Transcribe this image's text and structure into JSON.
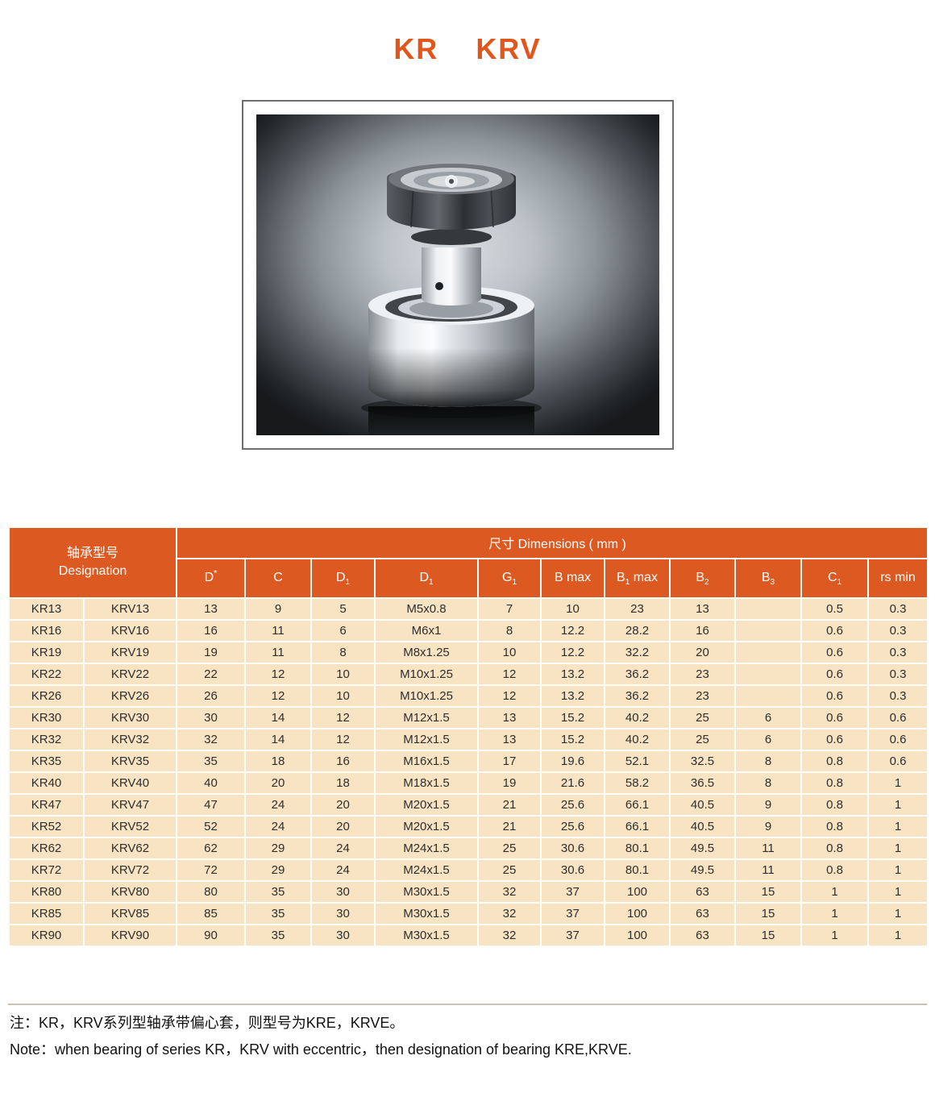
{
  "page": {
    "title_parts": [
      "KR",
      "KRV"
    ]
  },
  "photo": {
    "subject": "cam-follower-stud-bearing-photo"
  },
  "table": {
    "designation_header": {
      "line1": "轴承型号",
      "line2": "Designation"
    },
    "dimensions_header": "尺寸  Dimensions ( mm )",
    "columns": [
      {
        "pre": "D",
        "sup": "*"
      },
      {
        "pre": "C"
      },
      {
        "pre": "D",
        "sub": "1"
      },
      {
        "pre": "D",
        "sub": "1"
      },
      {
        "pre": "G",
        "sub": "1"
      },
      {
        "pre": "B max"
      },
      {
        "pre": "B",
        "sub": "1",
        "post": " max"
      },
      {
        "pre": "B",
        "sub": "2"
      },
      {
        "pre": "B",
        "sub": "3"
      },
      {
        "pre": "C",
        "sub": "1"
      },
      {
        "pre": "rs min"
      }
    ],
    "rows": [
      [
        "KR13",
        "KRV13",
        "13",
        "9",
        "5",
        "M5x0.8",
        "7",
        "10",
        "23",
        "13",
        "",
        "0.5",
        "0.3"
      ],
      [
        "KR16",
        "KRV16",
        "16",
        "11",
        "6",
        "M6x1",
        "8",
        "12.2",
        "28.2",
        "16",
        "",
        "0.6",
        "0.3"
      ],
      [
        "KR19",
        "KRV19",
        "19",
        "11",
        "8",
        "M8x1.25",
        "10",
        "12.2",
        "32.2",
        "20",
        "",
        "0.6",
        "0.3"
      ],
      [
        "KR22",
        "KRV22",
        "22",
        "12",
        "10",
        "M10x1.25",
        "12",
        "13.2",
        "36.2",
        "23",
        "",
        "0.6",
        "0.3"
      ],
      [
        "KR26",
        "KRV26",
        "26",
        "12",
        "10",
        "M10x1.25",
        "12",
        "13.2",
        "36.2",
        "23",
        "",
        "0.6",
        "0.3"
      ],
      [
        "KR30",
        "KRV30",
        "30",
        "14",
        "12",
        "M12x1.5",
        "13",
        "15.2",
        "40.2",
        "25",
        "6",
        "0.6",
        "0.6"
      ],
      [
        "KR32",
        "KRV32",
        "32",
        "14",
        "12",
        "M12x1.5",
        "13",
        "15.2",
        "40.2",
        "25",
        "6",
        "0.6",
        "0.6"
      ],
      [
        "KR35",
        "KRV35",
        "35",
        "18",
        "16",
        "M16x1.5",
        "17",
        "19.6",
        "52.1",
        "32.5",
        "8",
        "0.8",
        "0.6"
      ],
      [
        "KR40",
        "KRV40",
        "40",
        "20",
        "18",
        "M18x1.5",
        "19",
        "21.6",
        "58.2",
        "36.5",
        "8",
        "0.8",
        "1"
      ],
      [
        "KR47",
        "KRV47",
        "47",
        "24",
        "20",
        "M20x1.5",
        "21",
        "25.6",
        "66.1",
        "40.5",
        "9",
        "0.8",
        "1"
      ],
      [
        "KR52",
        "KRV52",
        "52",
        "24",
        "20",
        "M20x1.5",
        "21",
        "25.6",
        "66.1",
        "40.5",
        "9",
        "0.8",
        "1"
      ],
      [
        "KR62",
        "KRV62",
        "62",
        "29",
        "24",
        "M24x1.5",
        "25",
        "30.6",
        "80.1",
        "49.5",
        "11",
        "0.8",
        "1"
      ],
      [
        "KR72",
        "KRV72",
        "72",
        "29",
        "24",
        "M24x1.5",
        "25",
        "30.6",
        "80.1",
        "49.5",
        "11",
        "0.8",
        "1"
      ],
      [
        "KR80",
        "KRV80",
        "80",
        "35",
        "30",
        "M30x1.5",
        "32",
        "37",
        "100",
        "63",
        "15",
        "1",
        "1"
      ],
      [
        "KR85",
        "KRV85",
        "85",
        "35",
        "30",
        "M30x1.5",
        "32",
        "37",
        "100",
        "63",
        "15",
        "1",
        "1"
      ],
      [
        "KR90",
        "KRV90",
        "90",
        "35",
        "30",
        "M30x1.5",
        "32",
        "37",
        "100",
        "63",
        "15",
        "1",
        "1"
      ]
    ]
  },
  "notes": {
    "zh": "注：KR，KRV系列型轴承带偏心套，则型号为KRE，KRVE。",
    "en": "Note：when bearing of series KR，KRV with eccentric，then designation of bearing KRE,KRVE."
  },
  "colors": {
    "accent_orange": "#dc5a22",
    "title_orange": "#e2551b",
    "row_cream": "#f8e3c2",
    "cell_border": "#ffffff",
    "body_text": "#2e2e2e"
  }
}
